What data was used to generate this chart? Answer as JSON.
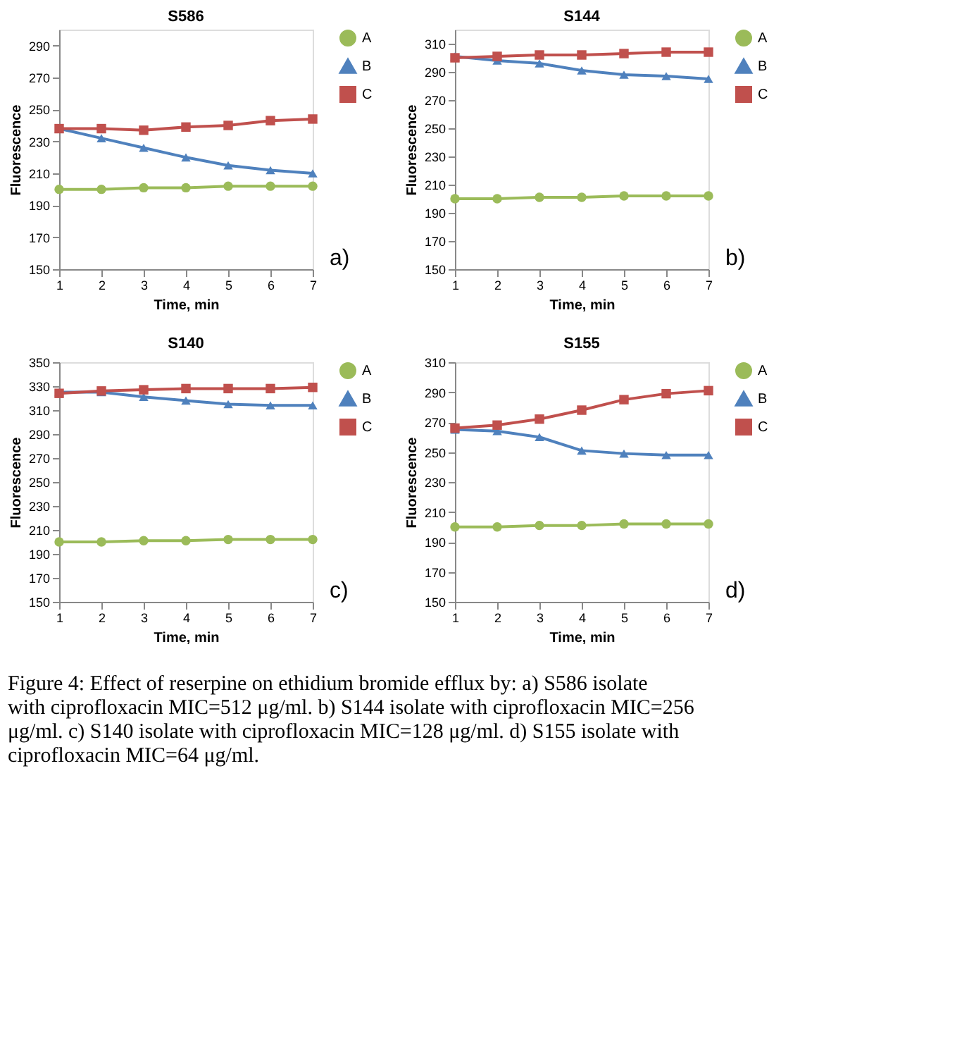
{
  "chart_data": [
    {
      "type": "line",
      "title": "S586",
      "xlabel": "Time, min",
      "ylabel": "Fluorescence",
      "x": [
        1,
        2,
        3,
        4,
        5,
        6,
        7
      ],
      "xlim": [
        1,
        7
      ],
      "xticks": [
        1,
        2,
        3,
        4,
        5,
        6,
        7
      ],
      "ylim": [
        150,
        300
      ],
      "yticks": [
        150,
        170,
        190,
        210,
        230,
        250,
        270,
        290
      ],
      "grid": false,
      "legend": "right",
      "annotations": [
        "a)"
      ],
      "series": [
        {
          "name": "A",
          "color": "#9bbb59",
          "marker": "circle",
          "values": [
            200,
            200,
            201,
            201,
            202,
            202,
            202
          ]
        },
        {
          "name": "B",
          "color": "#4f81bd",
          "marker": "triangle",
          "values": [
            238,
            232,
            226,
            220,
            215,
            212,
            210
          ]
        },
        {
          "name": "C",
          "color": "#c0504d",
          "marker": "square",
          "values": [
            238,
            238,
            237,
            239,
            240,
            243,
            244
          ]
        }
      ]
    },
    {
      "type": "line",
      "title": "S144",
      "xlabel": "Time, min",
      "ylabel": "Fluorescence",
      "x": [
        1,
        2,
        3,
        4,
        5,
        6,
        7
      ],
      "xlim": [
        1,
        7
      ],
      "xticks": [
        1,
        2,
        3,
        4,
        5,
        6,
        7
      ],
      "ylim": [
        150,
        320
      ],
      "yticks": [
        150,
        170,
        190,
        210,
        230,
        250,
        270,
        290,
        310
      ],
      "grid": false,
      "legend": "right",
      "annotations": [
        "b)"
      ],
      "series": [
        {
          "name": "A",
          "color": "#9bbb59",
          "marker": "circle",
          "values": [
            200,
            200,
            201,
            201,
            202,
            202,
            202
          ]
        },
        {
          "name": "B",
          "color": "#4f81bd",
          "marker": "triangle",
          "values": [
            301,
            298,
            296,
            291,
            288,
            287,
            285
          ]
        },
        {
          "name": "C",
          "color": "#c0504d",
          "marker": "square",
          "values": [
            300,
            301,
            302,
            302,
            303,
            304,
            304
          ]
        }
      ]
    },
    {
      "type": "line",
      "title": "S140",
      "xlabel": "Time, min",
      "ylabel": "Fluorescence",
      "x": [
        1,
        2,
        3,
        4,
        5,
        6,
        7
      ],
      "xlim": [
        1,
        7
      ],
      "xticks": [
        1,
        2,
        3,
        4,
        5,
        6,
        7
      ],
      "ylim": [
        150,
        350
      ],
      "yticks": [
        150,
        170,
        190,
        210,
        230,
        250,
        270,
        290,
        310,
        330,
        350
      ],
      "grid": false,
      "legend": "right",
      "annotations": [
        "c)"
      ],
      "series": [
        {
          "name": "A",
          "color": "#9bbb59",
          "marker": "circle",
          "values": [
            200,
            200,
            201,
            201,
            202,
            202,
            202
          ]
        },
        {
          "name": "B",
          "color": "#4f81bd",
          "marker": "triangle",
          "values": [
            325,
            325,
            321,
            318,
            315,
            314,
            314
          ]
        },
        {
          "name": "C",
          "color": "#c0504d",
          "marker": "square",
          "values": [
            324,
            326,
            327,
            328,
            328,
            328,
            329
          ]
        }
      ]
    },
    {
      "type": "line",
      "title": "S155",
      "xlabel": "Time, min",
      "ylabel": "Fluorescence",
      "x": [
        1,
        2,
        3,
        4,
        5,
        6,
        7
      ],
      "xlim": [
        1,
        7
      ],
      "xticks": [
        1,
        2,
        3,
        4,
        5,
        6,
        7
      ],
      "ylim": [
        150,
        310
      ],
      "yticks": [
        150,
        170,
        190,
        210,
        230,
        250,
        270,
        290,
        310
      ],
      "grid": false,
      "legend": "right",
      "annotations": [
        "d)",
        "Figure 4: Effect of reserpine on ethidium bromide efflux by: a) S586 isolate with ciprofloxacin MIC=512 μg/ml. b) S144 isolate with ciprofloxacin MIC=256 μg/ml. c) S140 isolate with ciprofloxacin MIC=128 μg/ml. d) S155 isolate with ciprofloxacin MIC=64 μg/ml."
      ],
      "series": [
        {
          "name": "A",
          "color": "#9bbb59",
          "marker": "circle",
          "values": [
            200,
            200,
            201,
            201,
            202,
            202,
            202
          ]
        },
        {
          "name": "B",
          "color": "#4f81bd",
          "marker": "triangle",
          "values": [
            265,
            264,
            260,
            251,
            249,
            248,
            248
          ]
        },
        {
          "name": "C",
          "color": "#c0504d",
          "marker": "square",
          "values": [
            266,
            268,
            272,
            278,
            285,
            289,
            291
          ]
        }
      ]
    }
  ]
}
